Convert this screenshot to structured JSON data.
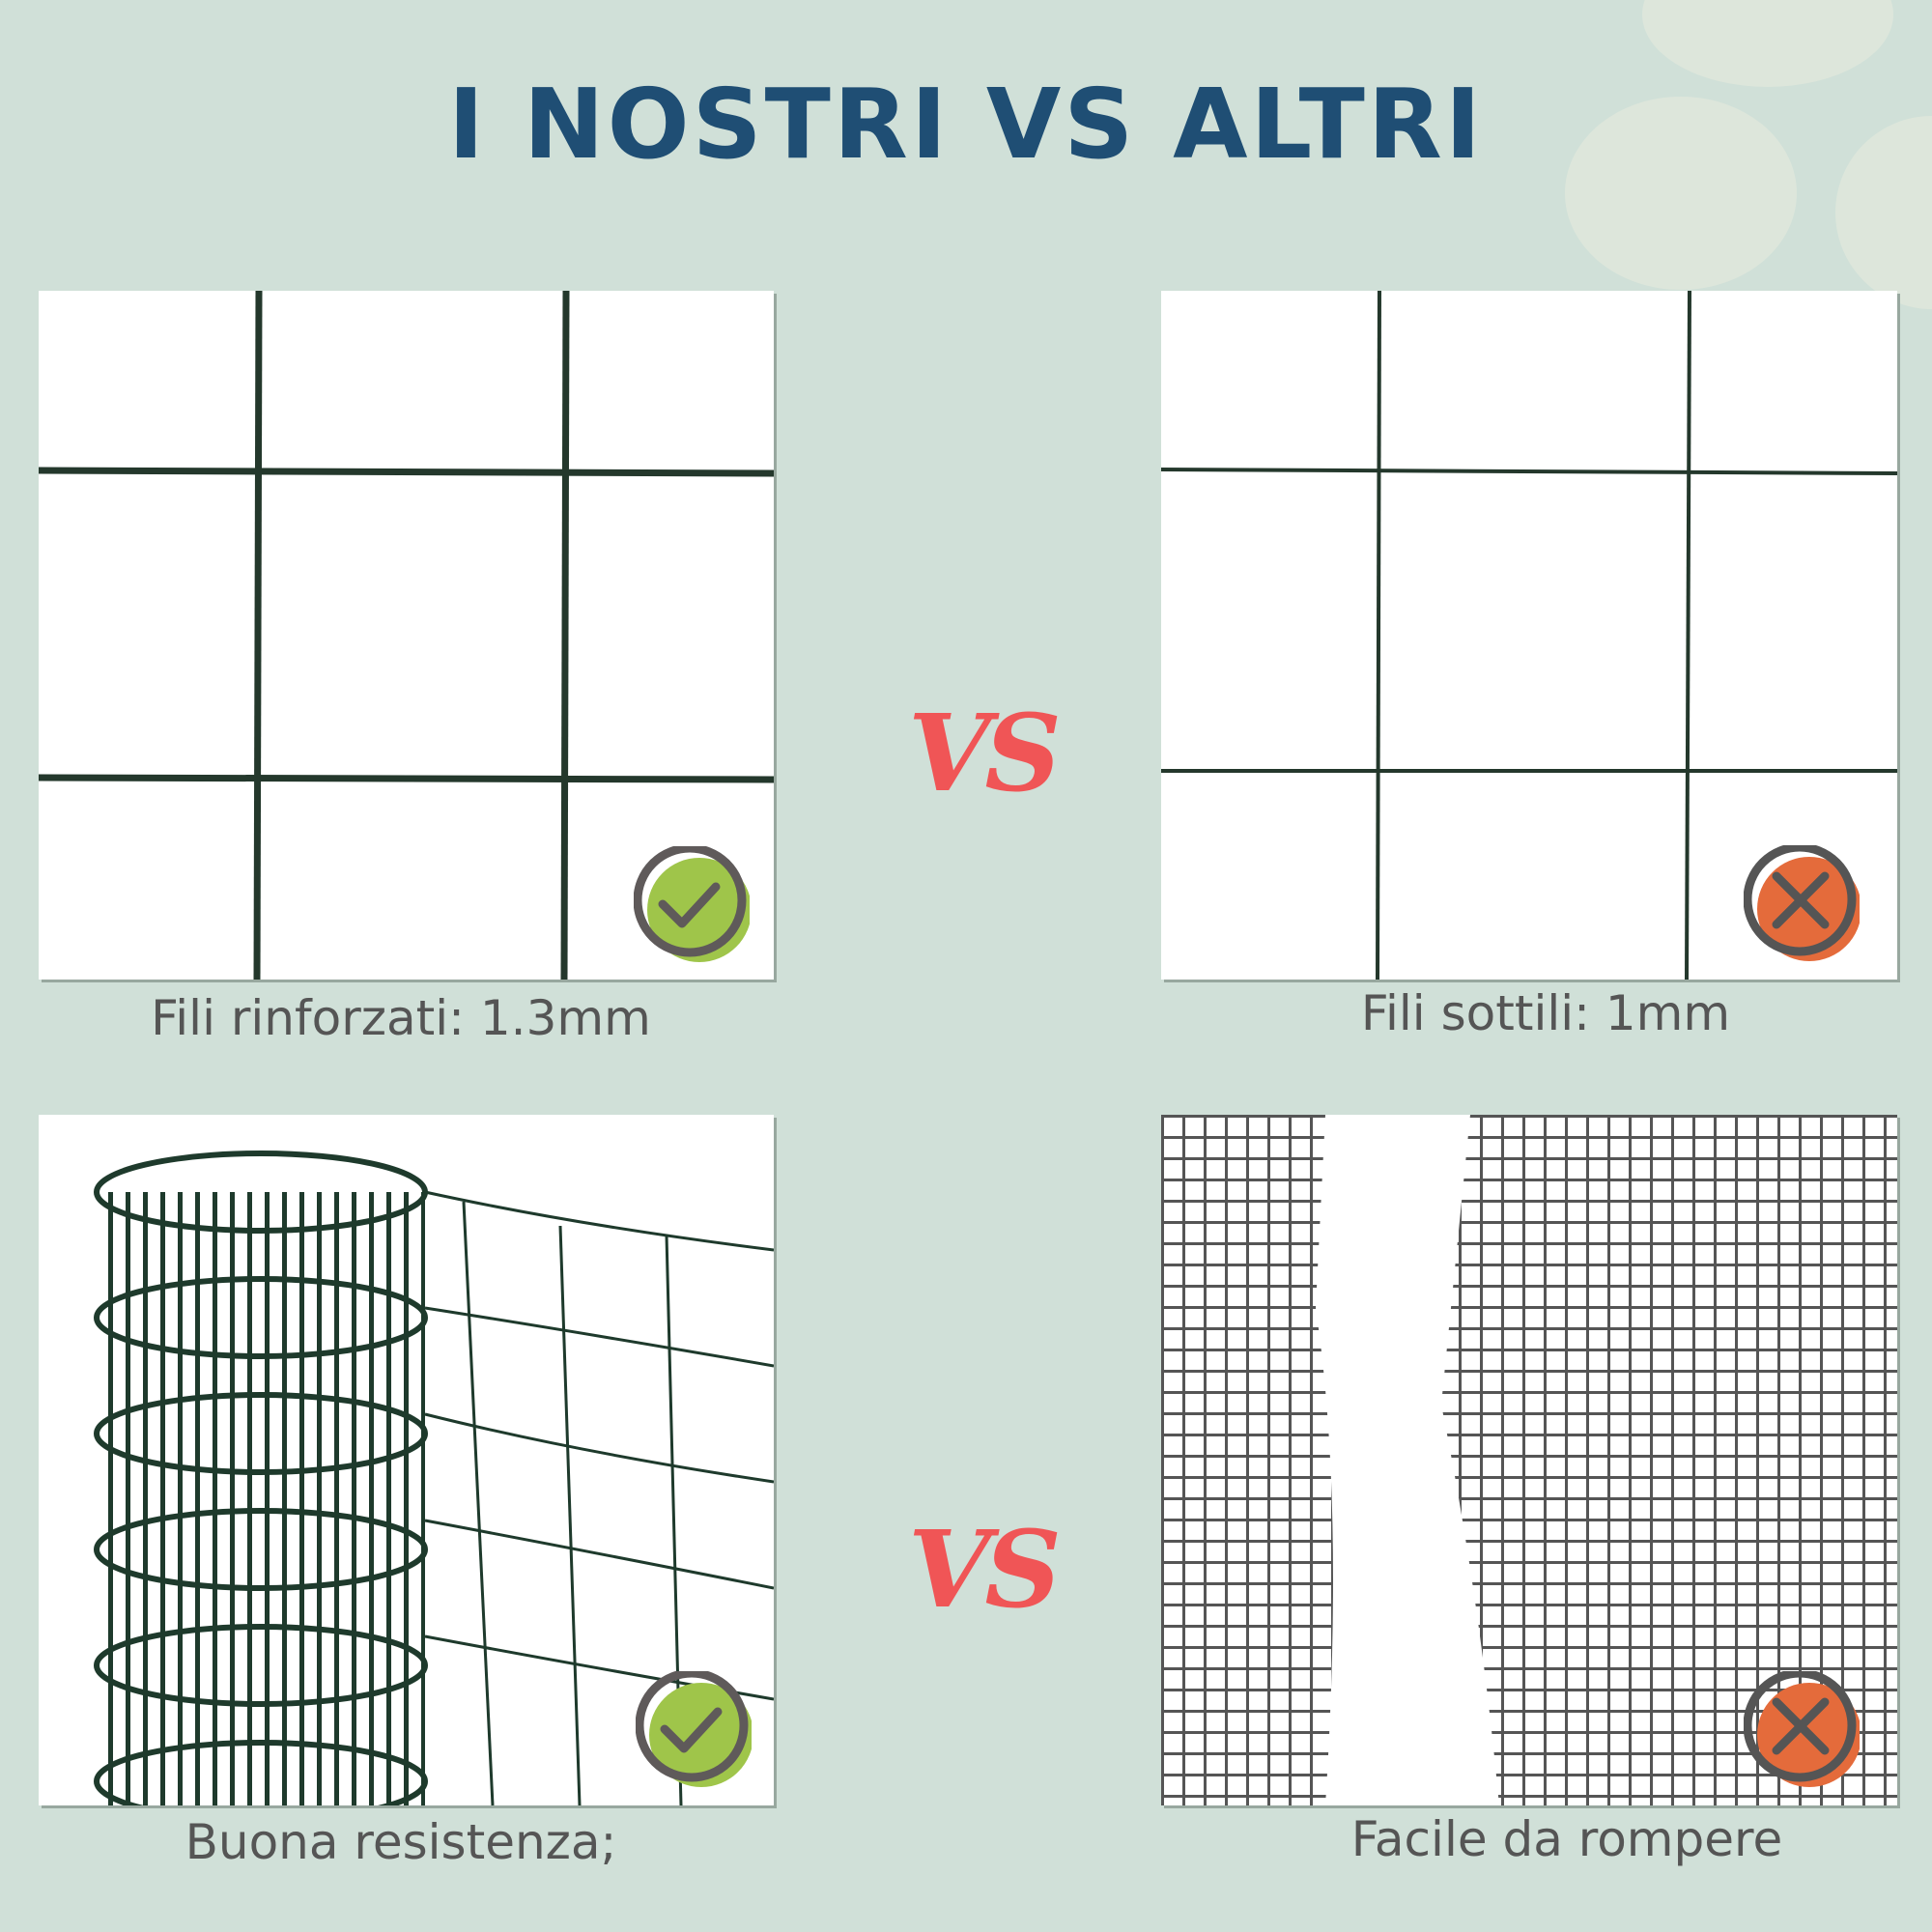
{
  "title": "I NOSTRI VS ALTRI",
  "vs_label": "VS",
  "comparisons": [
    {
      "ours": {
        "caption": "Fili rinforzati: 1.3mm",
        "icon": "check-icon"
      },
      "others": {
        "caption": "Fili sottili: 1mm",
        "icon": "cross-icon"
      }
    },
    {
      "ours": {
        "caption": "Buona resistenza;",
        "icon": "check-icon"
      },
      "others": {
        "caption": "Facile da rompere",
        "icon": "cross-icon"
      }
    }
  ],
  "colors": {
    "background": "#d0e0d8",
    "title": "#1f4e74",
    "vs": "#f05556",
    "check": "#9fc54a",
    "cross": "#e46b3b",
    "wire": "#1e3a2c"
  }
}
